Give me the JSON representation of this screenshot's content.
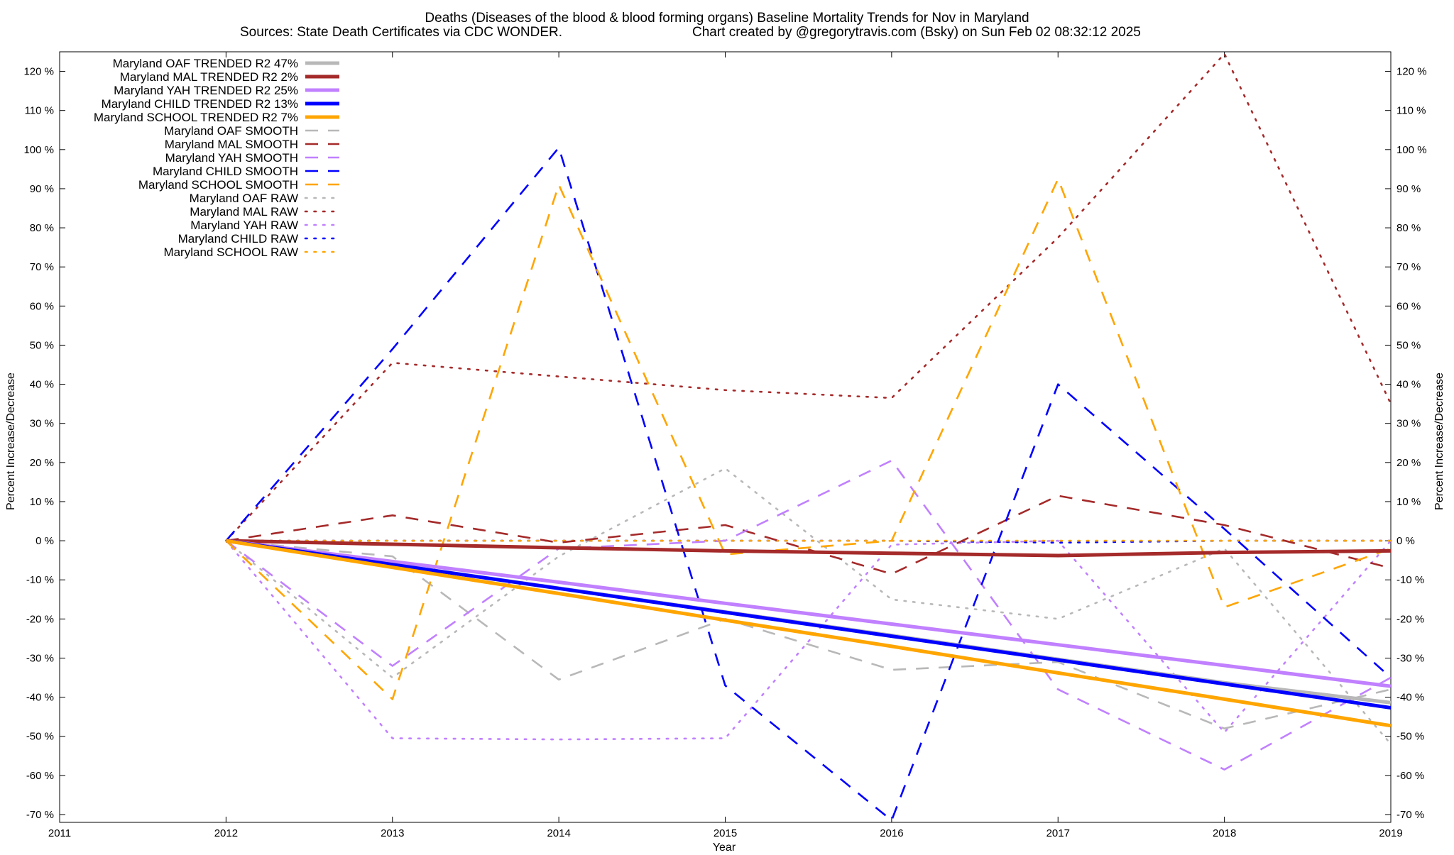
{
  "chart_data": {
    "type": "line",
    "title": "Deaths (Diseases of the blood & blood forming organs)  Baseline Mortality Trends for Nov in Maryland",
    "subtitle_left": "Sources: State Death Certificates via CDC WONDER.",
    "subtitle_right": "Chart created by @gregorytravis.com (Bsky) on Sun Feb 02 08:32:12 2025",
    "xlabel": "Year",
    "ylabel_left": "Percent Increase/Decrease",
    "ylabel_right": "Percent Increase/Decrease",
    "xlim": [
      2011,
      2019
    ],
    "ylim": [
      -72,
      125
    ],
    "x_ticks": [
      "2011",
      "2012",
      "2013",
      "2014",
      "2015",
      "2016",
      "2017",
      "2018",
      "2019"
    ],
    "y_ticks": [
      120,
      110,
      100,
      90,
      80,
      70,
      60,
      50,
      40,
      30,
      20,
      10,
      0,
      -10,
      -20,
      -30,
      -40,
      -50,
      -60,
      -70
    ],
    "y_tick_labels": [
      "120 %",
      "110 %",
      "100 %",
      "90 %",
      "80 %",
      "70 %",
      "60 %",
      "50 %",
      "40 %",
      "30 %",
      "20 %",
      "10 %",
      "0 %",
      "-10 %",
      "-20 %",
      "-30 %",
      "-40 %",
      "-50 %",
      "-60 %",
      "-70 %"
    ],
    "grid": false,
    "legend_position": "top-left",
    "x": [
      2012,
      2013,
      2014,
      2015,
      2016,
      2017,
      2018,
      2019
    ],
    "series": [
      {
        "name": "Maryland OAF TRENDED R2  47%",
        "style": "trend",
        "color": "#b8b8b8",
        "values": [
          0,
          -6.1,
          -12.1,
          -18.2,
          -24.2,
          -30.3,
          -36.3,
          -41.4
        ]
      },
      {
        "name": "Maryland MAL TRENDED R2  2%",
        "style": "trend",
        "color": "#a52a2a",
        "values": [
          0,
          -0.9,
          -1.8,
          -2.6,
          -3.2,
          -3.8,
          -3.0,
          -2.6
        ]
      },
      {
        "name": "Maryland YAH TRENDED R2  25%",
        "style": "trend",
        "color": "#c080ff",
        "values": [
          0,
          -5.3,
          -10.6,
          -16.0,
          -21.3,
          -26.6,
          -31.9,
          -37.2
        ]
      },
      {
        "name": "Maryland CHILD TRENDED R2  13%",
        "style": "trend",
        "color": "#0000ff",
        "values": [
          0,
          -6.1,
          -12.2,
          -18.3,
          -24.4,
          -30.5,
          -36.6,
          -42.7
        ]
      },
      {
        "name": "Maryland SCHOOL TRENDED R2  7%",
        "style": "trend",
        "color": "#ffa500",
        "values": [
          0,
          -6.8,
          -13.5,
          -20.3,
          -27.0,
          -33.8,
          -40.5,
          -47.3
        ]
      },
      {
        "name": "Maryland OAF SMOOTH",
        "style": "smooth",
        "color": "#b8b8b8",
        "values": [
          0,
          -4,
          -35.5,
          -20,
          -33,
          -31,
          -48,
          -38
        ]
      },
      {
        "name": "Maryland MAL SMOOTH",
        "style": "smooth",
        "color": "#a52a2a",
        "values": [
          0,
          6.5,
          -0.5,
          4,
          -8.5,
          11.5,
          4,
          -7
        ]
      },
      {
        "name": "Maryland YAH SMOOTH",
        "style": "smooth",
        "color": "#c080ff",
        "values": [
          0,
          -32,
          -2,
          0,
          20.5,
          -38,
          -58.5,
          -35
        ]
      },
      {
        "name": "Maryland CHILD SMOOTH",
        "style": "smooth",
        "color": "#0000ff",
        "values": [
          0,
          49,
          100.5,
          -37,
          -71.5,
          40,
          3,
          -35
        ]
      },
      {
        "name": "Maryland SCHOOL SMOOTH",
        "style": "smooth",
        "color": "#ffa500",
        "values": [
          0,
          -40.5,
          91,
          -3.5,
          0,
          92.5,
          -17,
          -2
        ]
      },
      {
        "name": "Maryland OAF RAW",
        "style": "raw",
        "color": "#b8b8b8",
        "values": [
          0,
          -35,
          -4,
          18.5,
          -15,
          -20,
          -2,
          -52
        ]
      },
      {
        "name": "Maryland MAL RAW",
        "style": "raw",
        "color": "#a52a2a",
        "values": [
          0,
          45.5,
          42,
          38.5,
          36.5,
          77.5,
          124.5,
          35
        ]
      },
      {
        "name": "Maryland YAH RAW",
        "style": "raw",
        "color": "#c080ff",
        "values": [
          0,
          -50.5,
          -50.8,
          -50.5,
          -1,
          0,
          -49,
          0
        ]
      },
      {
        "name": "Maryland CHILD RAW",
        "style": "raw",
        "color": "#0000ff",
        "values": [
          0,
          0,
          0,
          0,
          0,
          -0.5,
          0,
          0
        ]
      },
      {
        "name": "Maryland SCHOOL RAW",
        "style": "raw",
        "color": "#ffa500",
        "values": [
          0,
          0,
          0,
          0,
          0,
          0,
          0,
          0
        ]
      }
    ]
  }
}
